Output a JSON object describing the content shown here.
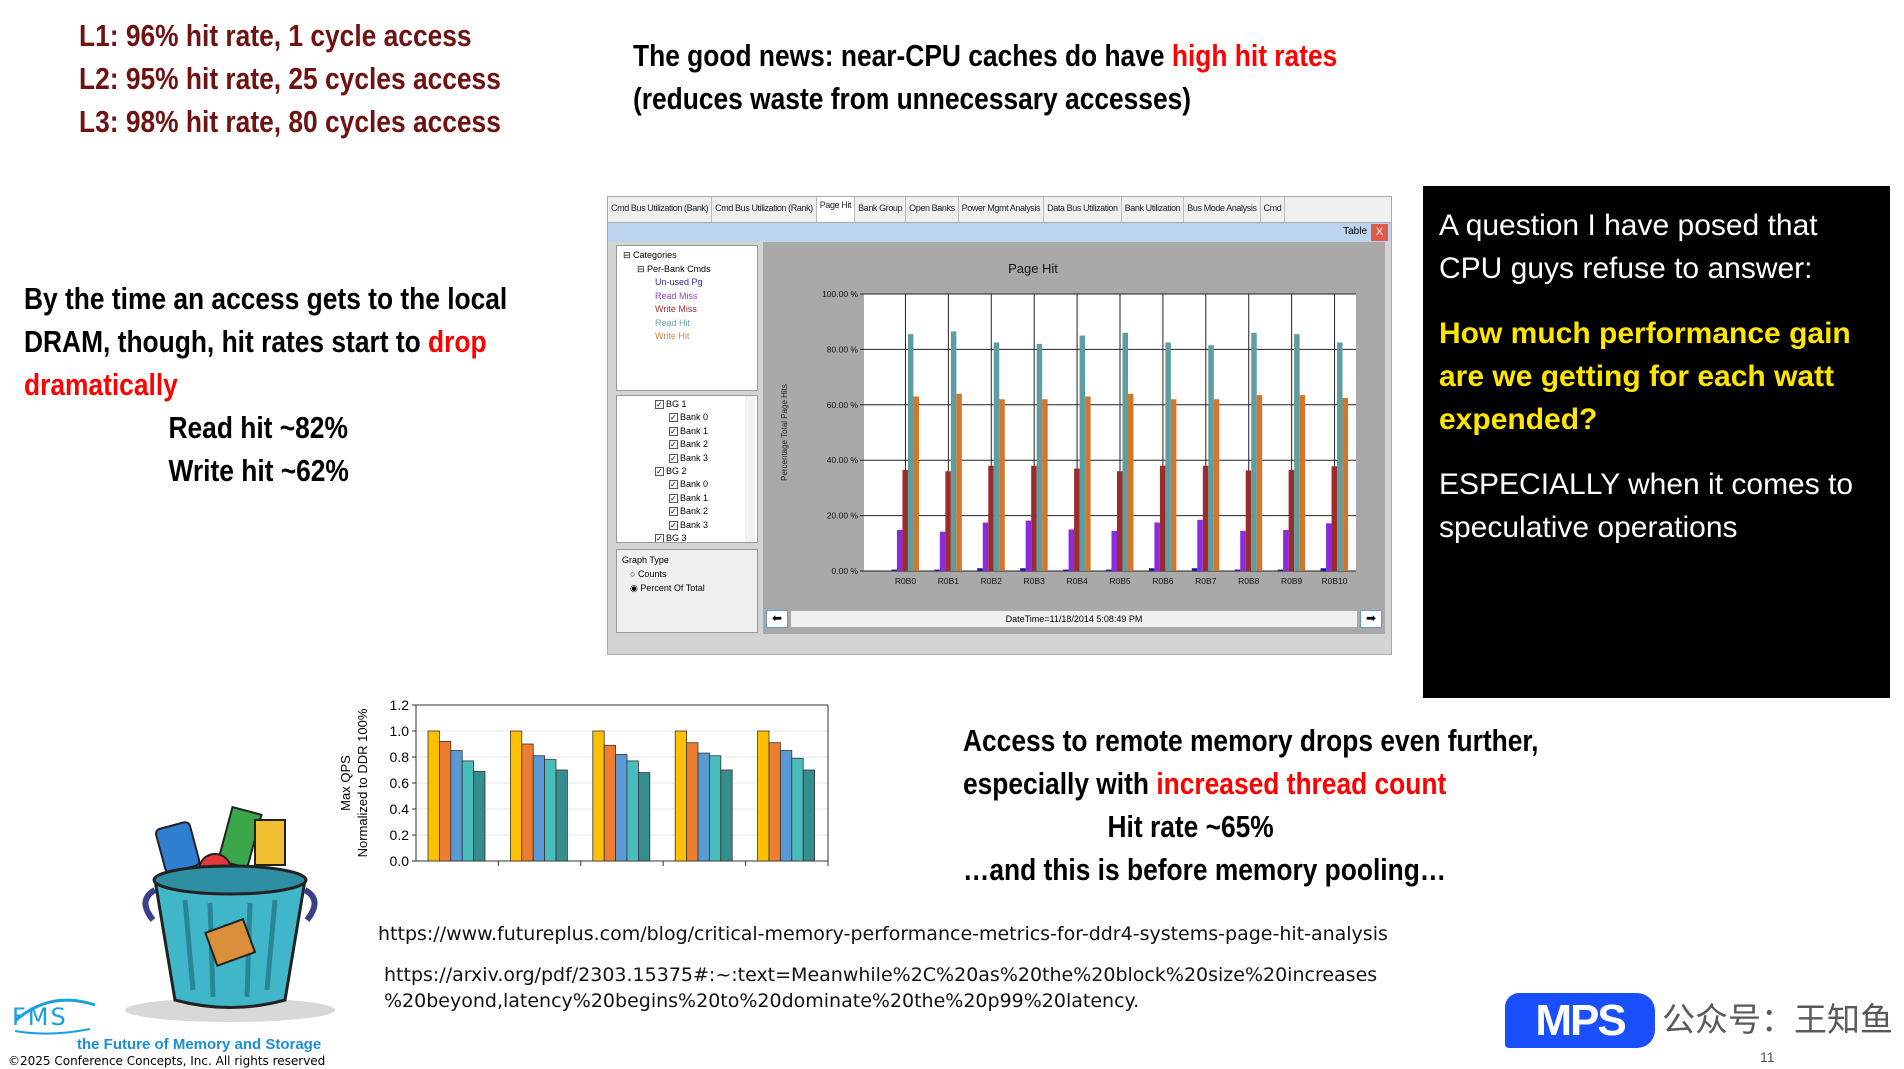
{
  "top_left": [
    "L1: 96% hit rate, 1 cycle access",
    "L2: 95% hit rate, 25 cycles access",
    "L3: 98% hit rate, 80 cycles access"
  ],
  "good_news": {
    "line1_a": "The good news: near-CPU caches do have ",
    "line1_b": "high hit rates",
    "line2": "(reduces waste from unnecessary accesses)"
  },
  "dram": {
    "l1": "By the time an access gets to the local",
    "l2_a": "DRAM, though, hit rates start to ",
    "l2_b": "drop",
    "l3": "dramatically",
    "read": "Read hit ~82%",
    "write": "Write hit ~62%"
  },
  "question": {
    "p1": "A question I have posed that CPU guys refuse to answer:",
    "p2": "How much performance gain are we getting for each watt expended?",
    "p3": "ESPECIALLY when it comes to speculative operations"
  },
  "remote": {
    "l1": "Access to remote memory drops even further,",
    "l2_a": "especially with ",
    "l2_b": "increased thread count",
    "l3": "Hit rate ~65%",
    "l4": "…and this is before memory pooling…"
  },
  "urls": [
    "https://www.futureplus.com/blog/critical-memory-performance-metrics-for-ddr4-systems-page-hit-analysis",
    "https://arxiv.org/pdf/2303.15375#:~:text=Meanwhile%2C%20as%20the%20block%20size%20increases",
    "%20beyond,latency%20begins%20to%20dominate%20the%20p99%20latency."
  ],
  "footer": {
    "logo": "FMS",
    "tagline": "the Future of Memory and Storage",
    "copyright": "©2025 Conference Concepts, Inc.  All rights reserved",
    "page": "11",
    "watermark_logo": "MPS",
    "watermark": "公众号：王知鱼"
  },
  "app": {
    "tabs": [
      "Cmd Bus Utilization (Bank)",
      "Cmd Bus Utilization (Rank)",
      "Page Hit",
      "Bank Group",
      "Open Banks",
      "Power Mgmt Analysis",
      "Data Bus Utilization",
      "Bank Utilization",
      "Bus Mode Analysis",
      "Cmd"
    ],
    "active_tab": "Page Hit",
    "table_label": "Table",
    "close": "X",
    "categories": {
      "root": "Categories",
      "group": "Per-Bank Cmds",
      "items": [
        {
          "label": "Un-used Pg",
          "color": "#2b2b9e"
        },
        {
          "label": "Read Miss",
          "color": "#9b3fd1"
        },
        {
          "label": "Write Miss",
          "color": "#a33030"
        },
        {
          "label": "Read Hit",
          "color": "#6aa8a8"
        },
        {
          "label": "Write Hit",
          "color": "#d8843a"
        }
      ]
    },
    "tree": [
      {
        "label": "BG 1",
        "level": 0
      },
      {
        "label": "Bank 0",
        "level": 1
      },
      {
        "label": "Bank 1",
        "level": 1
      },
      {
        "label": "Bank 2",
        "level": 1
      },
      {
        "label": "Bank 3",
        "level": 1
      },
      {
        "label": "BG 2",
        "level": 0
      },
      {
        "label": "Bank 0",
        "level": 1
      },
      {
        "label": "Bank 1",
        "level": 1
      },
      {
        "label": "Bank 2",
        "level": 1
      },
      {
        "label": "Bank 3",
        "level": 1
      },
      {
        "label": "BG 3",
        "level": 0
      }
    ],
    "graph_type": {
      "title": "Graph Type",
      "options": [
        "Counts",
        "Percent Of Total"
      ],
      "selected": "Percent Of Total"
    },
    "datetime": "DateTime=11/18/2014 5:08:49 PM"
  },
  "chart_data": [
    {
      "type": "bar",
      "title": "Page Hit",
      "ylabel": "Percentage Total Page Hits",
      "ylim": [
        0,
        100
      ],
      "yticks": [
        "0.00 %",
        "20.00 %",
        "40.00 %",
        "60.00 %",
        "80.00 %",
        "100.00 %"
      ],
      "grid": true,
      "categories": [
        "R0B0",
        "R0B1",
        "R0B2",
        "R0B3",
        "R0B4",
        "R0B5",
        "R0B6",
        "R0B7",
        "R0B8",
        "R0B9",
        "R0B10"
      ],
      "series": [
        {
          "name": "Un-used Pg",
          "color": "#1a1a9a",
          "values": [
            0.5,
            0.5,
            1,
            1,
            0.5,
            0.5,
            1,
            1,
            0.5,
            0.5,
            1
          ]
        },
        {
          "name": "Read Miss",
          "color": "#8a2be2",
          "values": [
            14.8,
            14.2,
            17.5,
            18.2,
            15,
            14.5,
            17.5,
            18.5,
            14.5,
            14.8,
            17.2
          ]
        },
        {
          "name": "Write Miss",
          "color": "#9b2c2c",
          "values": [
            36.5,
            36,
            38,
            38,
            37,
            36,
            38,
            38,
            36.3,
            36.5,
            37.8
          ]
        },
        {
          "name": "Read Hit",
          "color": "#5f9ea0",
          "values": [
            85.5,
            86.5,
            82.5,
            82,
            85,
            86,
            82.5,
            81.5,
            86,
            85.5,
            82.5
          ]
        },
        {
          "name": "Write Hit",
          "color": "#d2772e",
          "values": [
            63,
            64,
            62,
            62,
            63,
            64,
            62,
            62,
            63.5,
            63.5,
            62.5
          ]
        }
      ]
    },
    {
      "type": "bar",
      "ylabel": "Max QPS\nNormalized to DDR 100%",
      "ylim": [
        0,
        1.2
      ],
      "yticks": [
        "0.0",
        "0.2",
        "0.4",
        "0.6",
        "0.8",
        "1.0",
        "1.2"
      ],
      "grid": true,
      "series": [
        {
          "color": "#ffc000",
          "values": [
            1.0,
            1.0,
            1.0,
            1.0,
            1.0
          ]
        },
        {
          "color": "#ed7d31",
          "values": [
            0.92,
            0.9,
            0.89,
            0.91,
            0.91
          ]
        },
        {
          "color": "#5b9bd5",
          "values": [
            0.85,
            0.81,
            0.82,
            0.83,
            0.85
          ]
        },
        {
          "color": "#4bbcbc",
          "values": [
            0.77,
            0.78,
            0.77,
            0.81,
            0.79
          ]
        },
        {
          "color": "#358d8d",
          "values": [
            0.69,
            0.7,
            0.68,
            0.7,
            0.7
          ]
        }
      ]
    }
  ]
}
